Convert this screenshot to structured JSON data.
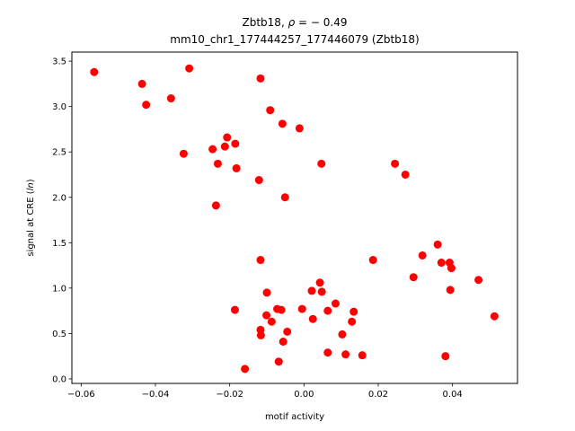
{
  "chart_data": {
    "type": "scatter",
    "title_line1": "Zbtb18, ",
    "title_rho": "ρ",
    "title_rho_value": " = − 0.49",
    "title_line2": "mm10_chr1_177444257_177446079 (Zbtb18)",
    "xlabel": "motif activity",
    "ylabel_prefix": "signal at CRE (",
    "ylabel_italic": "ln",
    "ylabel_suffix": ")",
    "xlim": [
      -0.0625,
      0.0575
    ],
    "ylim": [
      -0.05,
      3.6
    ],
    "xticks": [
      -0.06,
      -0.04,
      -0.02,
      0.0,
      0.02,
      0.04
    ],
    "xtick_labels": [
      "−0.06",
      "−0.04",
      "−0.02",
      "0.00",
      "0.02",
      "0.04"
    ],
    "yticks": [
      0.0,
      0.5,
      1.0,
      1.5,
      2.0,
      2.5,
      3.0,
      3.5
    ],
    "ytick_labels": [
      "0.0",
      "0.5",
      "1.0",
      "1.5",
      "2.0",
      "2.5",
      "3.0",
      "3.5"
    ],
    "marker_color": "#ff0000",
    "points": [
      {
        "x": -0.0565,
        "y": 3.38
      },
      {
        "x": -0.0436,
        "y": 3.25
      },
      {
        "x": -0.0425,
        "y": 3.02
      },
      {
        "x": -0.0358,
        "y": 3.09
      },
      {
        "x": -0.0309,
        "y": 3.42
      },
      {
        "x": -0.0324,
        "y": 2.48
      },
      {
        "x": -0.0246,
        "y": 2.53
      },
      {
        "x": -0.0232,
        "y": 2.37
      },
      {
        "x": -0.0213,
        "y": 2.56
      },
      {
        "x": -0.0207,
        "y": 2.66
      },
      {
        "x": -0.0185,
        "y": 2.59
      },
      {
        "x": -0.0182,
        "y": 2.32
      },
      {
        "x": -0.0237,
        "y": 1.91
      },
      {
        "x": -0.0121,
        "y": 2.19
      },
      {
        "x": -0.0117,
        "y": 3.31
      },
      {
        "x": -0.0091,
        "y": 2.96
      },
      {
        "x": -0.0058,
        "y": 2.81
      },
      {
        "x": -0.0012,
        "y": 2.76
      },
      {
        "x": -0.0051,
        "y": 2.0
      },
      {
        "x": 0.0047,
        "y": 2.37
      },
      {
        "x": 0.0245,
        "y": 2.37
      },
      {
        "x": 0.0273,
        "y": 2.25
      },
      {
        "x": 0.036,
        "y": 1.48
      },
      {
        "x": 0.0319,
        "y": 1.36
      },
      {
        "x": 0.0186,
        "y": 1.31
      },
      {
        "x": -0.0117,
        "y": 1.31
      },
      {
        "x": 0.037,
        "y": 1.28
      },
      {
        "x": 0.0392,
        "y": 1.28
      },
      {
        "x": 0.0397,
        "y": 1.22
      },
      {
        "x": 0.0295,
        "y": 1.12
      },
      {
        "x": 0.047,
        "y": 1.09
      },
      {
        "x": 0.0394,
        "y": 0.98
      },
      {
        "x": 0.0043,
        "y": 1.06
      },
      {
        "x": 0.0048,
        "y": 0.96
      },
      {
        "x": 0.0021,
        "y": 0.97
      },
      {
        "x": -0.01,
        "y": 0.95
      },
      {
        "x": 0.0085,
        "y": 0.83
      },
      {
        "x": -0.0005,
        "y": 0.77
      },
      {
        "x": 0.0064,
        "y": 0.75
      },
      {
        "x": 0.0134,
        "y": 0.74
      },
      {
        "x": -0.0186,
        "y": 0.76
      },
      {
        "x": -0.0072,
        "y": 0.77
      },
      {
        "x": -0.0061,
        "y": 0.76
      },
      {
        "x": -0.0101,
        "y": 0.7
      },
      {
        "x": 0.0513,
        "y": 0.69
      },
      {
        "x": 0.0024,
        "y": 0.66
      },
      {
        "x": -0.0087,
        "y": 0.63
      },
      {
        "x": 0.0129,
        "y": 0.63
      },
      {
        "x": -0.0117,
        "y": 0.54
      },
      {
        "x": -0.0045,
        "y": 0.52
      },
      {
        "x": 0.0103,
        "y": 0.49
      },
      {
        "x": -0.0116,
        "y": 0.48
      },
      {
        "x": -0.0056,
        "y": 0.41
      },
      {
        "x": 0.0064,
        "y": 0.29
      },
      {
        "x": 0.0112,
        "y": 0.27
      },
      {
        "x": 0.0157,
        "y": 0.26
      },
      {
        "x": 0.0381,
        "y": 0.25
      },
      {
        "x": -0.0068,
        "y": 0.19
      },
      {
        "x": -0.0159,
        "y": 0.11
      }
    ]
  }
}
